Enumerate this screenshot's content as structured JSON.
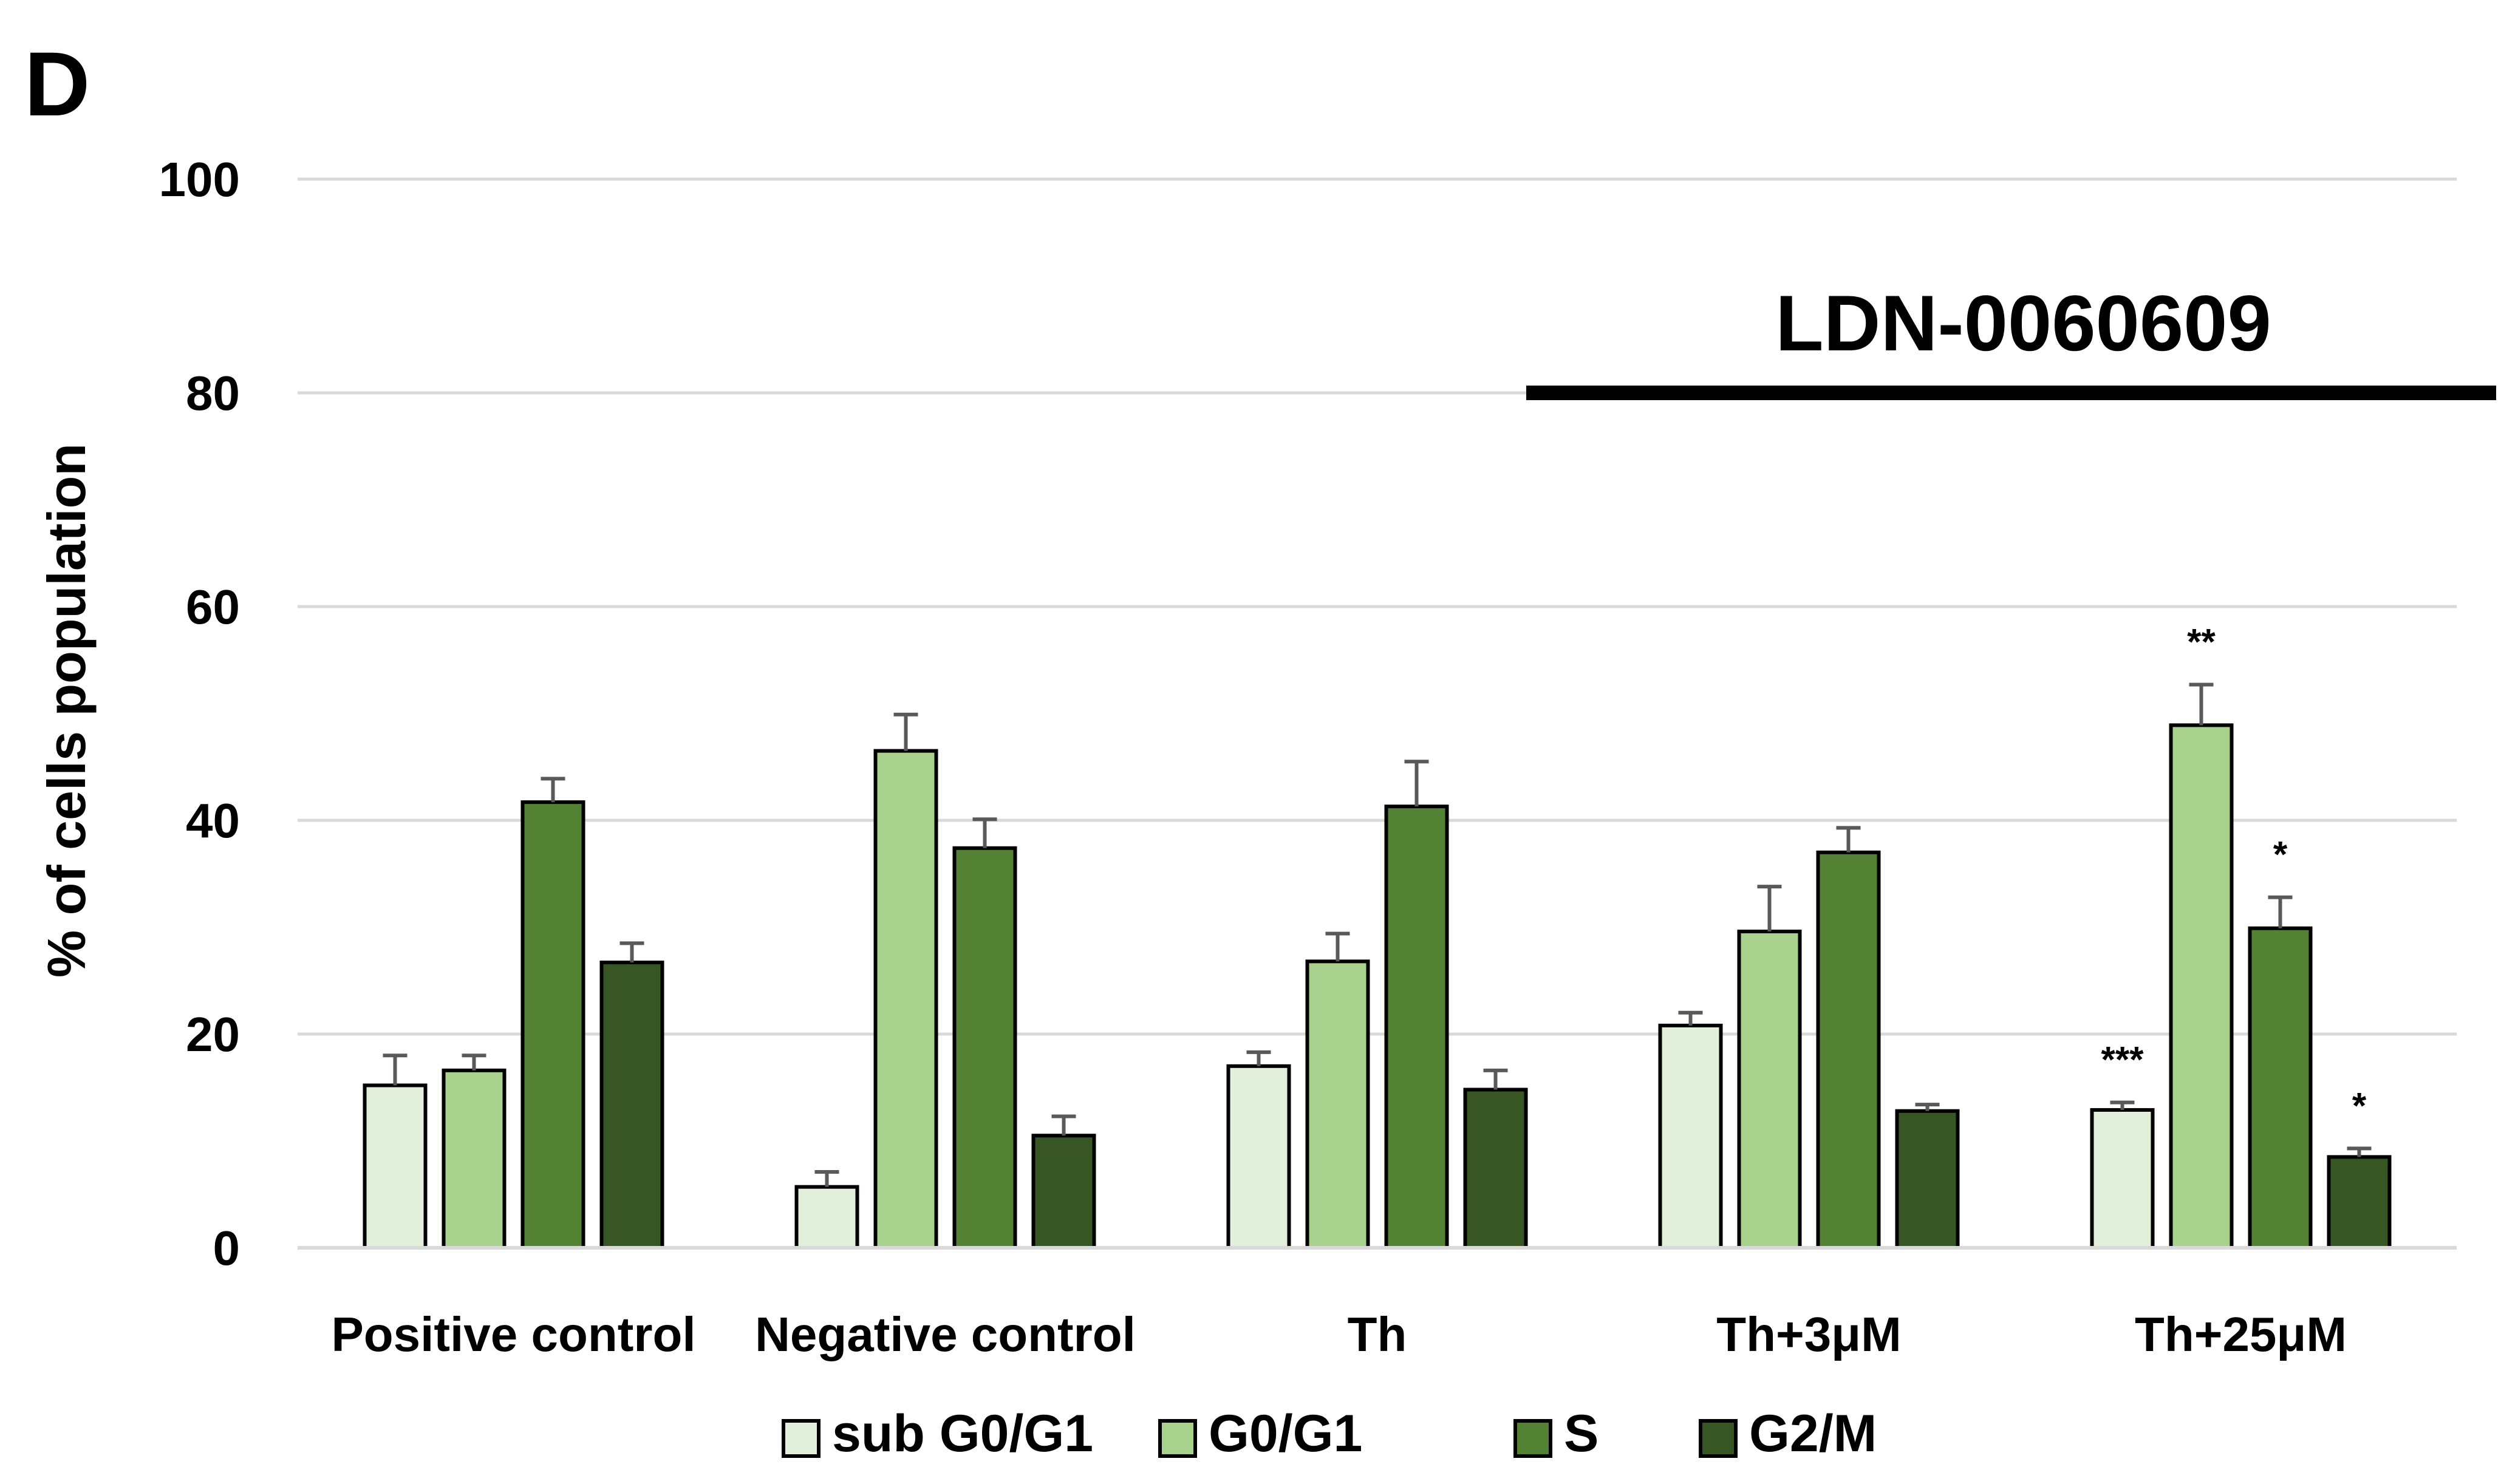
{
  "panel_label": "D",
  "colors": {
    "sub_g0_g1": "#e2efda",
    "g0_g1": "#a9d18e",
    "s": "#548235",
    "g2_m": "#375623",
    "grid": "#d9d9d9",
    "error": "#595959"
  },
  "chart_data": {
    "type": "bar",
    "title": "",
    "xlabel": "",
    "ylabel": "% of cells population",
    "ylim": [
      0,
      100
    ],
    "yticks": [
      0,
      20,
      40,
      60,
      80,
      100
    ],
    "grid": true,
    "legend_position": "bottom",
    "categories": [
      "Positive control",
      "Negative control",
      "Th",
      "Th+3μM",
      "Th+25μM"
    ],
    "series": [
      {
        "name": "sub G0/G1",
        "color_key": "sub_g0_g1",
        "values": [
          15.2,
          5.7,
          17.0,
          20.8,
          12.9
        ],
        "errors": [
          2.8,
          1.4,
          1.3,
          1.2,
          0.7
        ]
      },
      {
        "name": "G0/G1",
        "color_key": "g0_g1",
        "values": [
          16.6,
          46.5,
          26.8,
          29.6,
          48.9
        ],
        "errors": [
          1.4,
          3.4,
          2.6,
          4.2,
          3.8
        ]
      },
      {
        "name": "S",
        "color_key": "s",
        "values": [
          41.7,
          37.4,
          41.3,
          37.0,
          29.9
        ],
        "errors": [
          2.2,
          2.7,
          4.2,
          2.3,
          2.9
        ]
      },
      {
        "name": "G2/M",
        "color_key": "g2_m",
        "values": [
          26.7,
          10.5,
          14.8,
          12.8,
          8.5
        ],
        "errors": [
          1.8,
          1.8,
          1.8,
          0.6,
          0.8
        ]
      }
    ],
    "significance": [
      {
        "category_index": 4,
        "series_index": 0,
        "label": "***"
      },
      {
        "category_index": 4,
        "series_index": 1,
        "label": "**"
      },
      {
        "category_index": 4,
        "series_index": 2,
        "label": "*"
      },
      {
        "category_index": 4,
        "series_index": 3,
        "label": "*"
      }
    ],
    "bracket": {
      "label": "LDN-0060609",
      "from_category_index": 3,
      "to_category_index": 4,
      "y_value": 80
    }
  }
}
